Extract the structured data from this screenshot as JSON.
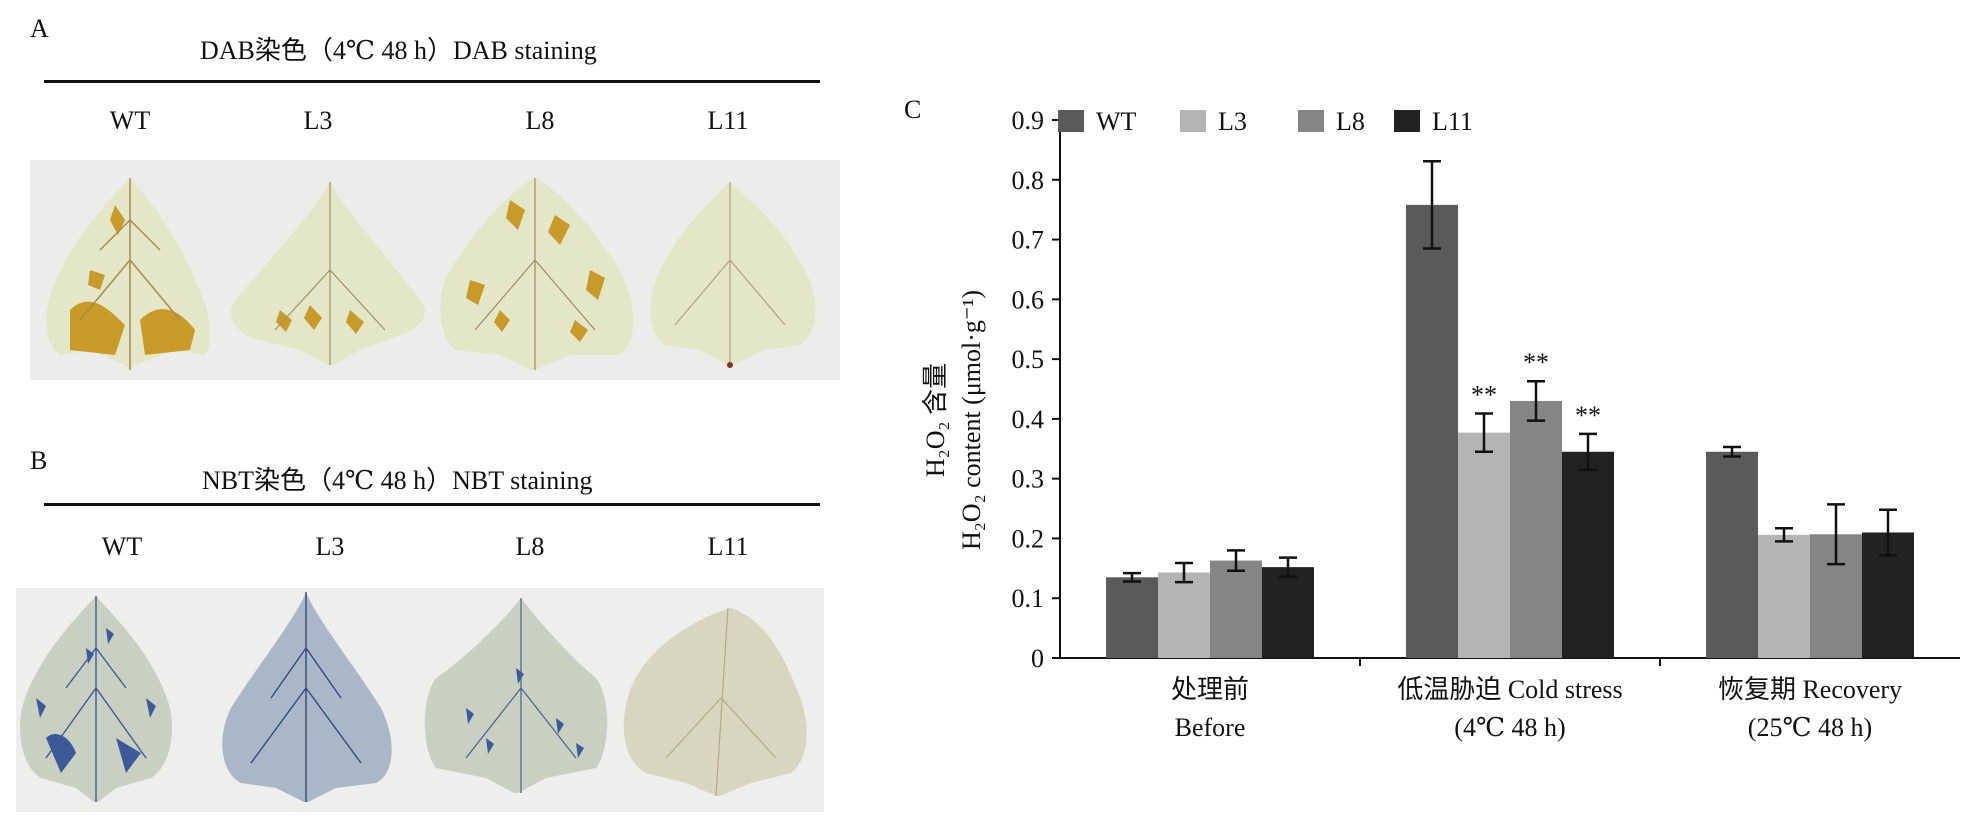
{
  "panelA": {
    "letter": "A",
    "title": "DAB染色（4℃ 48 h）DAB staining",
    "labels": [
      "WT",
      "L3",
      "L8",
      "L11"
    ]
  },
  "panelB": {
    "letter": "B",
    "title": "NBT染色（4℃ 48 h）NBT staining",
    "labels": [
      "WT",
      "L3",
      "L8",
      "L11"
    ]
  },
  "panelC": {
    "letter": "C"
  },
  "colors": {
    "WT": "#5a5a5a",
    "L3": "#b4b4b4",
    "L8": "#858585",
    "L11": "#222222",
    "dab_leaf": "#e4e6c8",
    "dab_stain": "#c89a2a",
    "nbt_leaf": "#c9d0c2",
    "nbt_stain": "#3c5a9a"
  },
  "chart_data": {
    "type": "bar",
    "categories": [
      [
        "处理前",
        "Before"
      ],
      [
        "低温胁迫 Cold stress",
        "(4℃ 48 h)"
      ],
      [
        "恢复期 Recovery",
        "(25℃ 48 h)"
      ]
    ],
    "series": [
      {
        "name": "WT",
        "values": [
          0.135,
          0.758,
          0.345
        ],
        "errors": [
          0.007,
          0.073,
          0.008
        ]
      },
      {
        "name": "L3",
        "values": [
          0.143,
          0.377,
          0.206
        ],
        "errors": [
          0.016,
          0.032,
          0.011
        ]
      },
      {
        "name": "L8",
        "values": [
          0.163,
          0.43,
          0.207
        ],
        "errors": [
          0.017,
          0.033,
          0.05
        ]
      },
      {
        "name": "L11",
        "values": [
          0.152,
          0.345,
          0.21
        ],
        "errors": [
          0.016,
          0.03,
          0.038
        ]
      }
    ],
    "annotations": [
      {
        "category": 1,
        "series": 1,
        "text": "**"
      },
      {
        "category": 1,
        "series": 2,
        "text": "**"
      },
      {
        "category": 1,
        "series": 3,
        "text": "**"
      }
    ],
    "ylabel_cn": "H₂O₂ 含量",
    "ylabel_en": "H₂O₂  content (μmol·g⁻¹)",
    "ylim": [
      0,
      0.9
    ],
    "yticks": [
      "0",
      "0.1",
      "0.2",
      "0.3",
      "0.4",
      "0.5",
      "0.6",
      "0.7",
      "0.8",
      "0.9"
    ],
    "legend_position": "top-left",
    "grid": false
  }
}
